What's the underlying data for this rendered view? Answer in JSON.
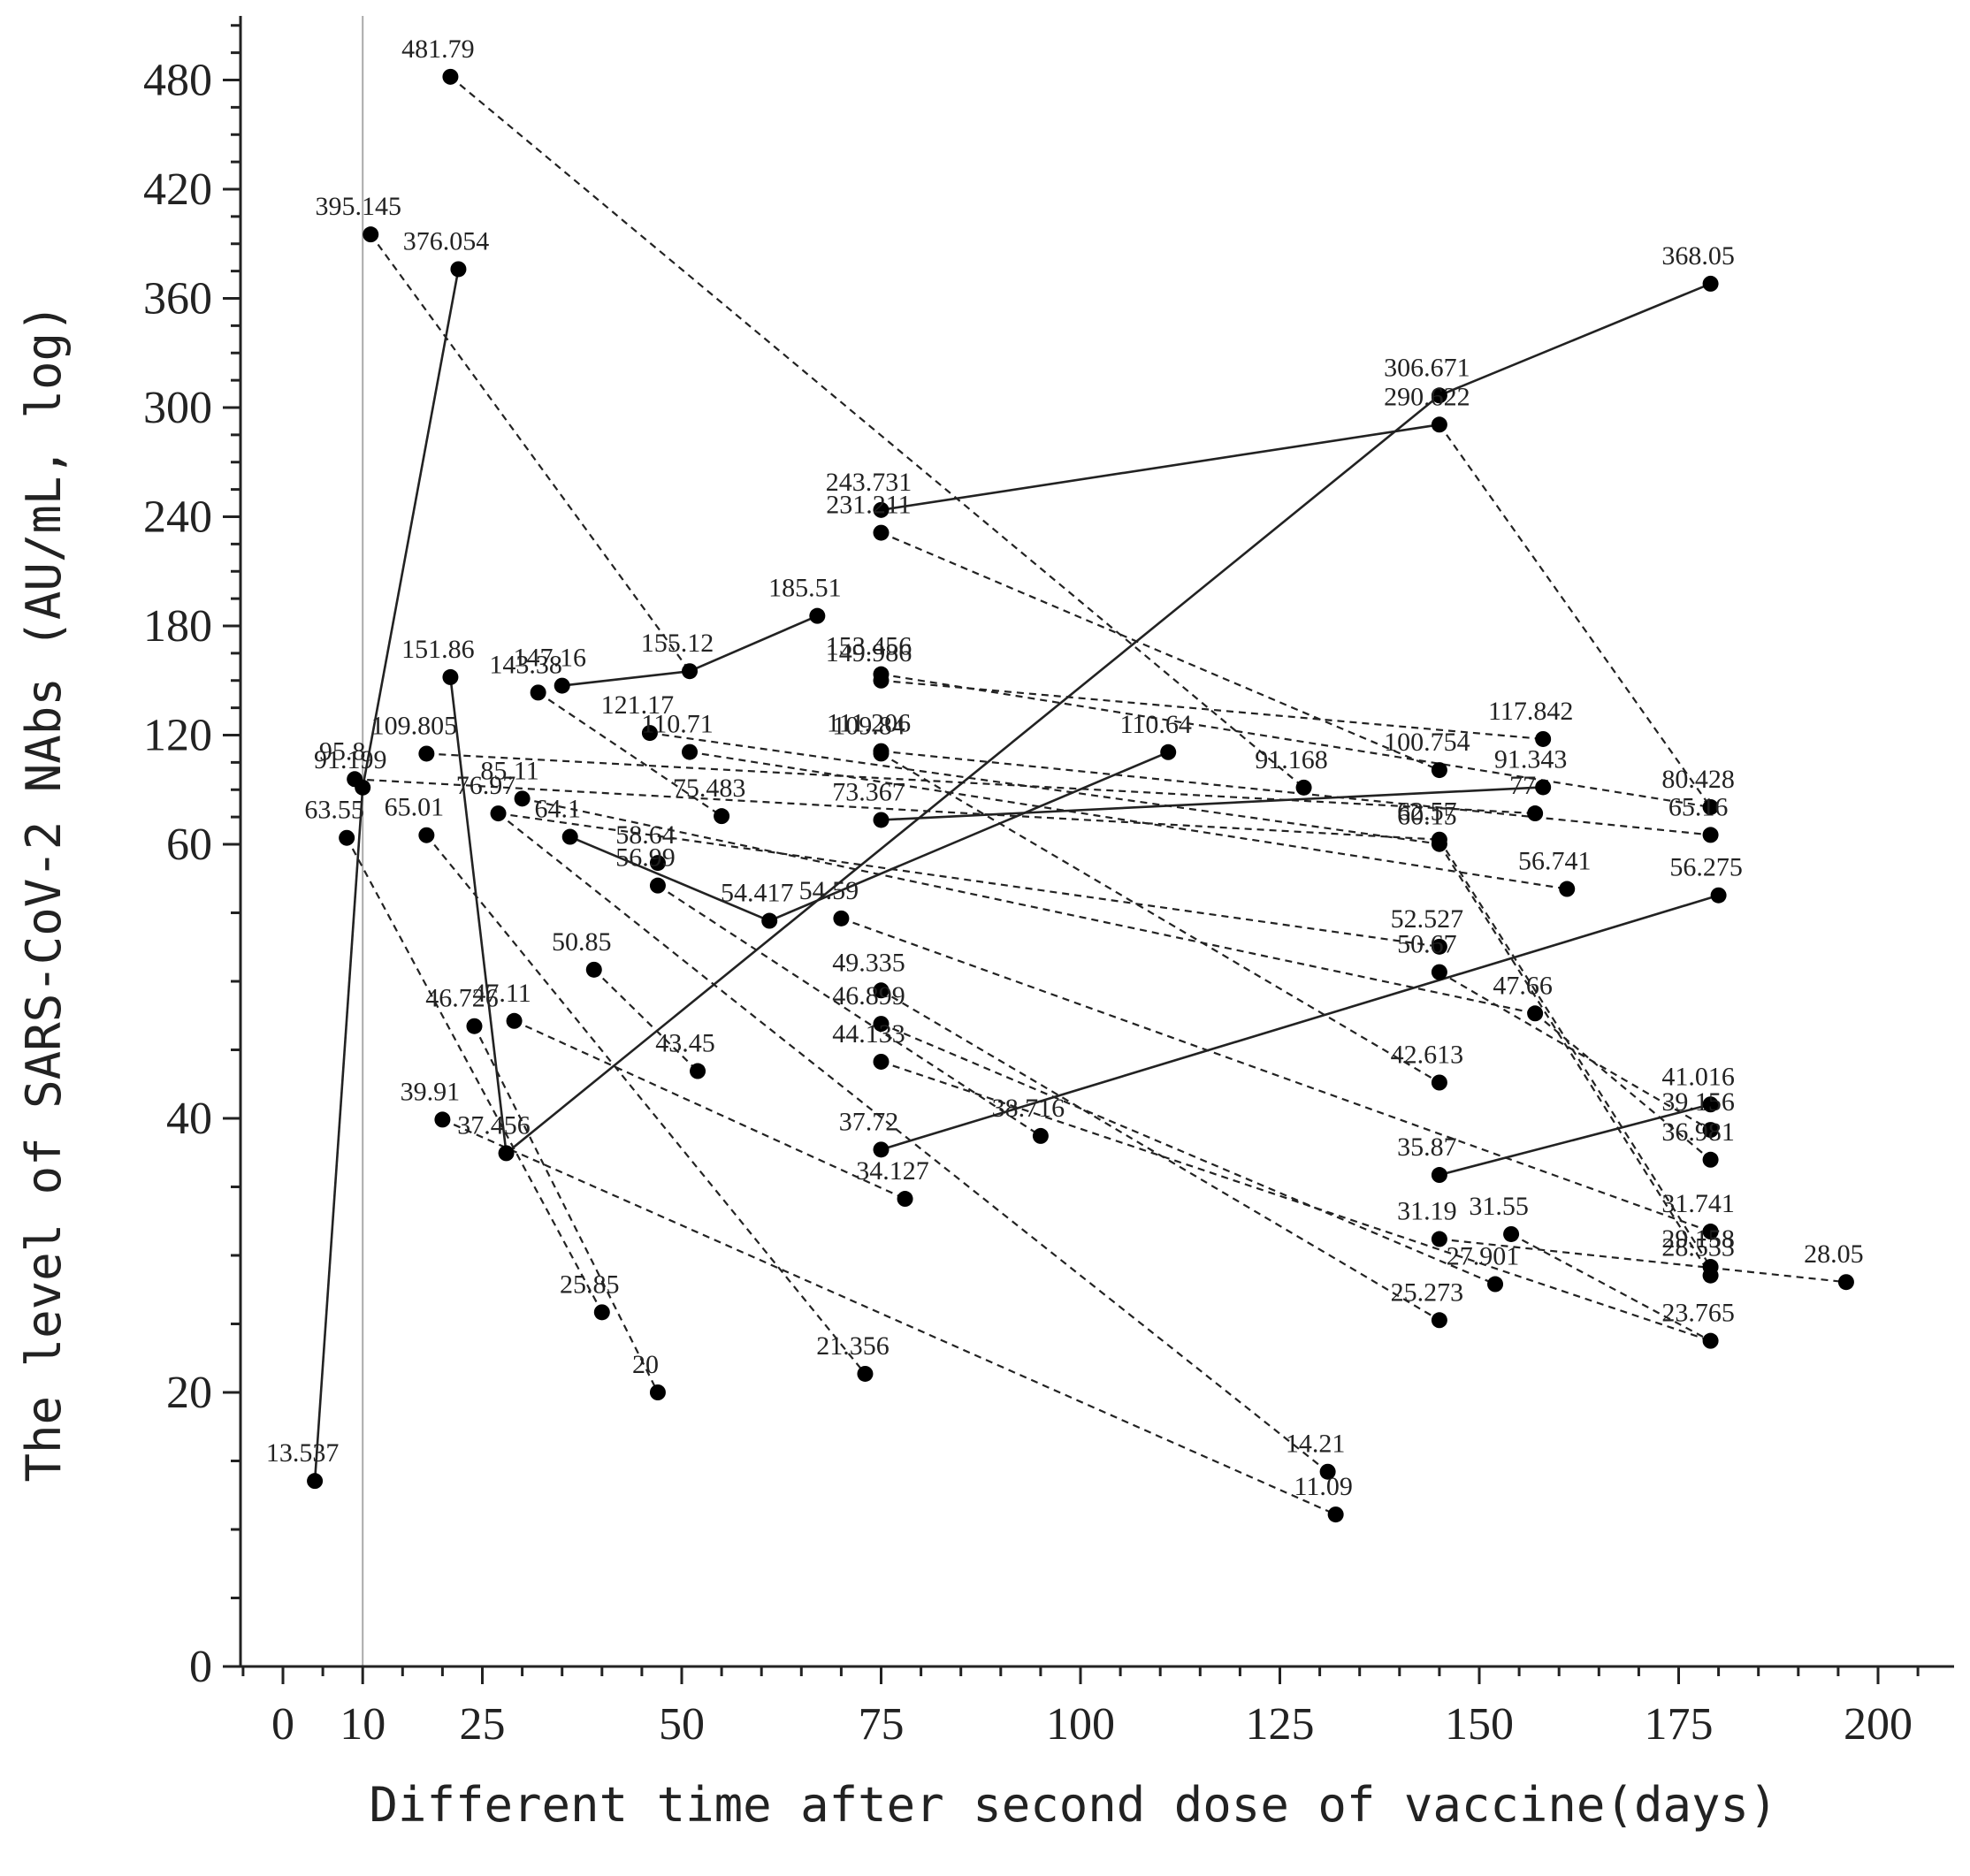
{
  "chart_data": {
    "type": "scatter",
    "xlabel": "Different time after second dose of vaccine(days)",
    "ylabel": "The level of SARS-CoV-2 NAbs (AU/mL, log)",
    "x_ticks": [
      0,
      10,
      25,
      50,
      75,
      100,
      125,
      150,
      175,
      200
    ],
    "y_ticks": [
      0,
      20,
      40,
      60,
      120,
      180,
      240,
      300,
      360,
      420,
      480
    ],
    "y_tick_labels": [
      "0",
      "20",
      "40",
      "60",
      "120",
      "180",
      "240",
      "300",
      "360",
      "420",
      "480"
    ],
    "x_reference_line": 10,
    "grid": false,
    "points": [
      {
        "x": 4,
        "y": 13.537,
        "label": "13.537"
      },
      {
        "x": 8,
        "y": 63.55,
        "label": "63.55"
      },
      {
        "x": 9,
        "y": 95.8,
        "label": "95.8"
      },
      {
        "x": 10,
        "y": 91.199,
        "label": "91.199"
      },
      {
        "x": 11,
        "y": 395.145,
        "label": "395.145"
      },
      {
        "x": 22,
        "y": 376.054,
        "label": "376.054"
      },
      {
        "x": 21,
        "y": 481.79,
        "label": "481.79"
      },
      {
        "x": 18,
        "y": 109.805,
        "label": "109.805"
      },
      {
        "x": 18,
        "y": 65.01,
        "label": "65.01"
      },
      {
        "x": 21,
        "y": 151.86,
        "label": "151.86"
      },
      {
        "x": 20,
        "y": 39.91,
        "label": "39.91"
      },
      {
        "x": 24,
        "y": 46.726,
        "label": "46.726"
      },
      {
        "x": 27,
        "y": 76.97,
        "label": "76.97"
      },
      {
        "x": 29,
        "y": 47.11,
        "label": "47.11"
      },
      {
        "x": 28,
        "y": 37.456,
        "label": "37.456"
      },
      {
        "x": 30,
        "y": 85.11,
        "label": "85.11"
      },
      {
        "x": 32,
        "y": 143.38,
        "label": "143.38"
      },
      {
        "x": 35,
        "y": 147.16,
        "label": "147.16"
      },
      {
        "x": 36,
        "y": 64.1,
        "label": "64.1"
      },
      {
        "x": 39,
        "y": 50.85,
        "label": "50.85"
      },
      {
        "x": 40,
        "y": 25.85,
        "label": "25.85"
      },
      {
        "x": 46,
        "y": 121.17,
        "label": "121.17"
      },
      {
        "x": 47,
        "y": 58.64,
        "label": "58.64"
      },
      {
        "x": 47,
        "y": 56.99,
        "label": "56.99"
      },
      {
        "x": 47,
        "y": 20,
        "label": "20"
      },
      {
        "x": 51,
        "y": 110.71,
        "label": "110.71"
      },
      {
        "x": 51,
        "y": 155.12,
        "label": "155.12"
      },
      {
        "x": 52,
        "y": 43.45,
        "label": "43.45"
      },
      {
        "x": 55,
        "y": 75.483,
        "label": "75.483"
      },
      {
        "x": 61,
        "y": 54.417,
        "label": "54.417"
      },
      {
        "x": 67,
        "y": 185.51,
        "label": "185.51"
      },
      {
        "x": 70,
        "y": 54.59,
        "label": "54.59"
      },
      {
        "x": 73,
        "y": 21.356,
        "label": "21.356"
      },
      {
        "x": 75,
        "y": 243.731,
        "label": "243.731"
      },
      {
        "x": 75,
        "y": 231.211,
        "label": "231.211"
      },
      {
        "x": 75,
        "y": 149.986,
        "label": "149.986"
      },
      {
        "x": 75,
        "y": 153.456,
        "label": "153.456"
      },
      {
        "x": 75,
        "y": 111.206,
        "label": "111.206"
      },
      {
        "x": 75,
        "y": 109.84,
        "label": "109.84"
      },
      {
        "x": 75,
        "y": 73.367,
        "label": "73.367"
      },
      {
        "x": 75,
        "y": 49.335,
        "label": "49.335"
      },
      {
        "x": 75,
        "y": 46.899,
        "label": "46.899"
      },
      {
        "x": 75,
        "y": 44.133,
        "label": "44.133"
      },
      {
        "x": 75,
        "y": 37.72,
        "label": "37.72"
      },
      {
        "x": 78,
        "y": 34.127,
        "label": "34.127"
      },
      {
        "x": 95,
        "y": 38.716,
        "label": "38.716"
      },
      {
        "x": 111,
        "y": 110.64,
        "label": "110.64"
      },
      {
        "x": 128,
        "y": 91.168,
        "label": "91.168"
      },
      {
        "x": 131,
        "y": 14.21,
        "label": "14.21"
      },
      {
        "x": 132,
        "y": 11.09,
        "label": "11.09"
      },
      {
        "x": 145,
        "y": 306.671,
        "label": "306.671"
      },
      {
        "x": 145,
        "y": 290.622,
        "label": "290.622"
      },
      {
        "x": 145,
        "y": 100.754,
        "label": "100.754"
      },
      {
        "x": 145,
        "y": 60.15,
        "label": "60.15"
      },
      {
        "x": 145,
        "y": 62.57,
        "label": "62.57"
      },
      {
        "x": 145,
        "y": 52.527,
        "label": "52.527"
      },
      {
        "x": 145,
        "y": 50.67,
        "label": "50.67"
      },
      {
        "x": 145,
        "y": 42.613,
        "label": "42.613"
      },
      {
        "x": 145,
        "y": 35.87,
        "label": "35.87"
      },
      {
        "x": 145,
        "y": 31.19,
        "label": "31.19"
      },
      {
        "x": 145,
        "y": 25.273,
        "label": "25.273"
      },
      {
        "x": 152,
        "y": 27.901,
        "label": "27.901"
      },
      {
        "x": 154,
        "y": 31.55,
        "label": "31.55"
      },
      {
        "x": 157,
        "y": 77,
        "label": "77"
      },
      {
        "x": 157,
        "y": 47.66,
        "label": "47.66"
      },
      {
        "x": 158,
        "y": 117.842,
        "label": "117.842"
      },
      {
        "x": 158,
        "y": 91.343,
        "label": "91.343"
      },
      {
        "x": 161,
        "y": 56.741,
        "label": "56.741"
      },
      {
        "x": 179,
        "y": 368.05,
        "label": "368.05"
      },
      {
        "x": 179,
        "y": 80.428,
        "label": "80.428"
      },
      {
        "x": 179,
        "y": 65.16,
        "label": "65.16"
      },
      {
        "x": 179,
        "y": 41.016,
        "label": "41.016"
      },
      {
        "x": 179,
        "y": 39.156,
        "label": "39.156"
      },
      {
        "x": 179,
        "y": 36.981,
        "label": "36.981"
      },
      {
        "x": 179,
        "y": 31.741,
        "label": "31.741"
      },
      {
        "x": 179,
        "y": 29.158,
        "label": "29.158"
      },
      {
        "x": 179,
        "y": 28.533,
        "label": "28.533"
      },
      {
        "x": 179,
        "y": 23.765,
        "label": "23.765"
      },
      {
        "x": 180,
        "y": 56.275,
        "label": "56.275"
      },
      {
        "x": 196,
        "y": 28.05,
        "label": "28.05"
      }
    ],
    "connections": [
      {
        "from": [
          4,
          13.537
        ],
        "to": [
          10,
          91.199
        ],
        "style": "solid"
      },
      {
        "from": [
          10,
          91.199
        ],
        "to": [
          22,
          376.054
        ],
        "style": "solid"
      },
      {
        "from": [
          28,
          37.456
        ],
        "to": [
          21,
          151.86
        ],
        "style": "solid"
      },
      {
        "from": [
          28,
          37.456
        ],
        "to": [
          145,
          306.671
        ],
        "style": "solid"
      },
      {
        "from": [
          75,
          243.731
        ],
        "to": [
          145,
          290.622
        ],
        "style": "solid"
      },
      {
        "from": [
          145,
          306.671
        ],
        "to": [
          179,
          368.05
        ],
        "style": "solid"
      },
      {
        "from": [
          35,
          147.16
        ],
        "to": [
          51,
          155.12
        ],
        "style": "solid"
      },
      {
        "from": [
          51,
          155.12
        ],
        "to": [
          67,
          185.51
        ],
        "style": "solid"
      },
      {
        "from": [
          36,
          64.1
        ],
        "to": [
          61,
          54.417
        ],
        "style": "solid"
      },
      {
        "from": [
          61,
          54.417
        ],
        "to": [
          111,
          110.64
        ],
        "style": "solid"
      },
      {
        "from": [
          75,
          73.367
        ],
        "to": [
          158,
          91.343
        ],
        "style": "solid"
      },
      {
        "from": [
          75,
          37.72
        ],
        "to": [
          180,
          56.275
        ],
        "style": "solid"
      },
      {
        "from": [
          145,
          35.87
        ],
        "to": [
          179,
          41.016
        ],
        "style": "solid"
      },
      {
        "from": [
          21,
          481.79
        ],
        "to": [
          128,
          91.168
        ],
        "style": "dashed"
      },
      {
        "from": [
          11,
          395.145
        ],
        "to": [
          51,
          155.12
        ],
        "style": "dashed"
      },
      {
        "from": [
          145,
          290.622
        ],
        "to": [
          179,
          80.428
        ],
        "style": "dashed"
      },
      {
        "from": [
          75,
          231.211
        ],
        "to": [
          145,
          100.754
        ],
        "style": "dashed"
      },
      {
        "from": [
          75,
          149.986
        ],
        "to": [
          158,
          117.842
        ],
        "style": "dashed"
      },
      {
        "from": [
          75,
          153.456
        ],
        "to": [
          179,
          80.428
        ],
        "style": "dashed"
      },
      {
        "from": [
          75,
          111.206
        ],
        "to": [
          179,
          65.16
        ],
        "style": "dashed"
      },
      {
        "from": [
          75,
          109.84
        ],
        "to": [
          145,
          42.613
        ],
        "style": "dashed"
      },
      {
        "from": [
          18,
          109.805
        ],
        "to": [
          157,
          77
        ],
        "style": "dashed"
      },
      {
        "from": [
          9,
          95.8
        ],
        "to": [
          145,
          62.57
        ],
        "style": "dashed"
      },
      {
        "from": [
          32,
          143.38
        ],
        "to": [
          55,
          75.483
        ],
        "style": "dashed"
      },
      {
        "from": [
          46,
          121.17
        ],
        "to": [
          145,
          60.15
        ],
        "style": "dashed"
      },
      {
        "from": [
          51,
          110.71
        ],
        "to": [
          161,
          56.741
        ],
        "style": "dashed"
      },
      {
        "from": [
          27,
          76.97
        ],
        "to": [
          145,
          52.527
        ],
        "style": "dashed"
      },
      {
        "from": [
          30,
          85.11
        ],
        "to": [
          157,
          47.66
        ],
        "style": "dashed"
      },
      {
        "from": [
          145,
          60.15
        ],
        "to": [
          179,
          28.533
        ],
        "style": "dashed"
      },
      {
        "from": [
          145,
          62.57
        ],
        "to": [
          179,
          29.158
        ],
        "style": "dashed"
      },
      {
        "from": [
          145,
          50.67
        ],
        "to": [
          179,
          39.156
        ],
        "style": "dashed"
      },
      {
        "from": [
          157,
          47.66
        ],
        "to": [
          179,
          36.981
        ],
        "style": "dashed"
      },
      {
        "from": [
          70,
          54.59
        ],
        "to": [
          179,
          31.741
        ],
        "style": "dashed"
      },
      {
        "from": [
          47,
          56.99
        ],
        "to": [
          95,
          38.716
        ],
        "style": "dashed"
      },
      {
        "from": [
          75,
          49.335
        ],
        "to": [
          145,
          25.273
        ],
        "style": "dashed"
      },
      {
        "from": [
          75,
          46.899
        ],
        "to": [
          152,
          27.901
        ],
        "style": "dashed"
      },
      {
        "from": [
          75,
          44.133
        ],
        "to": [
          179,
          23.765
        ],
        "style": "dashed"
      },
      {
        "from": [
          145,
          31.19
        ],
        "to": [
          196,
          28.05
        ],
        "style": "dashed"
      },
      {
        "from": [
          154,
          31.55
        ],
        "to": [
          179,
          23.765
        ],
        "style": "dashed"
      },
      {
        "from": [
          8,
          63.55
        ],
        "to": [
          40,
          25.85
        ],
        "style": "dashed"
      },
      {
        "from": [
          18,
          65.01
        ],
        "to": [
          73,
          21.356
        ],
        "style": "dashed"
      },
      {
        "from": [
          39,
          50.85
        ],
        "to": [
          52,
          43.45
        ],
        "style": "dashed"
      },
      {
        "from": [
          29,
          47.11
        ],
        "to": [
          78,
          34.127
        ],
        "style": "dashed"
      },
      {
        "from": [
          24,
          46.726
        ],
        "to": [
          47,
          20
        ],
        "style": "dashed"
      },
      {
        "from": [
          20,
          39.91
        ],
        "to": [
          132,
          11.09
        ],
        "style": "dashed"
      },
      {
        "from": [
          27,
          76.97
        ],
        "to": [
          131,
          14.21
        ],
        "style": "dashed"
      }
    ]
  }
}
